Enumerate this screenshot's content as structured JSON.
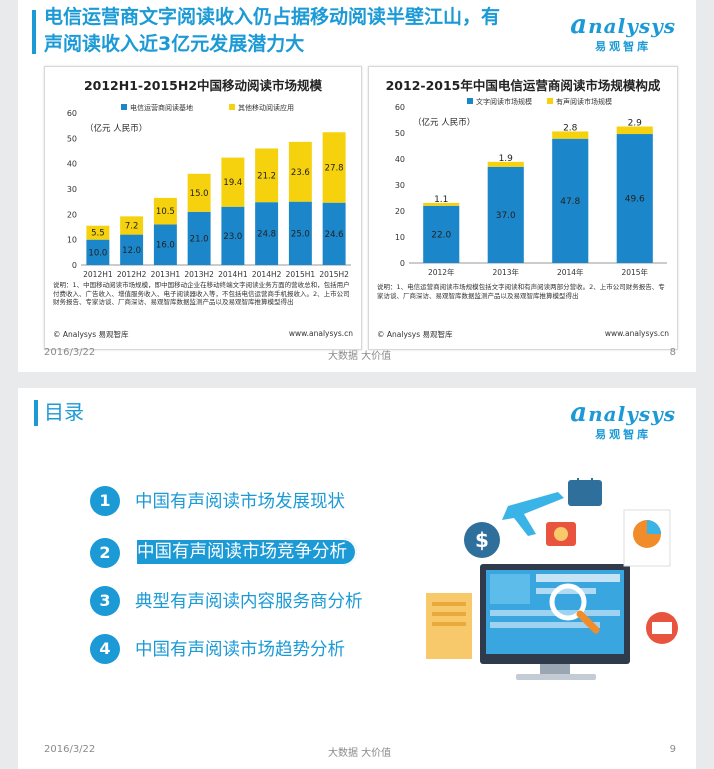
{
  "slide1": {
    "title": "电信运营商文字阅读收入仍占据移动阅读半壁江山，有声阅读收入近3亿元发展潜力大",
    "logo": "nalysys",
    "logo_sub": "易观智库",
    "date": "2016/3/22",
    "tagline": "大数据   大价值",
    "page": "8"
  },
  "slide2": {
    "title": "目录",
    "logo": "nalysys",
    "logo_sub": "易观智库",
    "date": "2016/3/22",
    "tagline": "大数据   大价值",
    "page": "9",
    "items": [
      {
        "num": "1",
        "label": "中国有声阅读市场发展现状"
      },
      {
        "num": "2",
        "label": "中国有声阅读市场竞争分析"
      },
      {
        "num": "3",
        "label": "典型有声阅读内容服务商分析"
      },
      {
        "num": "4",
        "label": "中国有声阅读市场趋势分析"
      }
    ],
    "active_index": 1
  },
  "colors": {
    "accent": "#1b9ad6",
    "yellow": "#f5d10e",
    "blue": "#1b86c9"
  },
  "chart_data": [
    {
      "type": "bar",
      "stacked": true,
      "title": "2012H1-2015H2中国移动阅读市场规模",
      "unit": "（亿元 人民币）",
      "categories": [
        "2012H1",
        "2012H2",
        "2013H1",
        "2013H2",
        "2014H1",
        "2014H2",
        "2015H1",
        "2015H2"
      ],
      "series": [
        {
          "name": "电信运营商阅读基地",
          "values": [
            10.0,
            12.0,
            16.0,
            21.0,
            23.0,
            24.8,
            25.0,
            24.6
          ],
          "labels": [
            "10.0",
            "12.0",
            "16.0",
            "21.0",
            "23.0",
            "24.8",
            "25.0",
            "24.6"
          ],
          "color": "#1b86c9"
        },
        {
          "name": "其他移动阅读应用",
          "values": [
            5.5,
            7.2,
            10.5,
            15.0,
            19.4,
            21.2,
            23.6,
            27.8
          ],
          "labels": [
            "5.5",
            "7.2",
            "10.5",
            "15.0",
            "19.4",
            "21.2",
            "23.6",
            "27.8"
          ],
          "color": "#f5d10e"
        }
      ],
      "ylim": [
        0,
        60
      ],
      "yticks": [
        "0",
        "10",
        "20",
        "30",
        "40",
        "50",
        "60"
      ],
      "legend": "top",
      "note": "说明：1、中国移动阅读市场规模，即中国移动企业在移动终端文字阅读业务方面的营收总和，包括用户付费收入、广告收入、增值服务收入、电子阅读器收入等，不包括电信运营商手机报收入。2、上市公司财务报告、专家访谈、厂商深访、易观智库数据监测产品以及易观智库推算模型得出",
      "source_left": "© Analysys 易观智库",
      "source_right": "www.analysys.cn"
    },
    {
      "type": "bar",
      "stacked": true,
      "title": "2012-2015年中国电信运营商阅读市场规模构成",
      "unit": "（亿元 人民币）",
      "categories": [
        "2012年",
        "2013年",
        "2014年",
        "2015年"
      ],
      "series": [
        {
          "name": "文字阅读市场规模",
          "values": [
            22.0,
            37.0,
            47.8,
            49.6
          ],
          "labels": [
            "22.0",
            "37.0",
            "47.8",
            "49.6"
          ],
          "color": "#1b86c9"
        },
        {
          "name": "有声阅读市场规模",
          "values": [
            1.1,
            1.9,
            2.8,
            2.9
          ],
          "labels": [
            "1.1",
            "1.9",
            "2.8",
            "2.9"
          ],
          "color": "#f5d10e"
        }
      ],
      "ylim": [
        0,
        60
      ],
      "yticks": [
        "0",
        "10",
        "20",
        "30",
        "40",
        "50",
        "60"
      ],
      "legend": "top",
      "note": "说明：1、电信运营商阅读市场规模包括文字阅读和有声阅读两部分营收。2、上市公司财务报告、专家访谈、厂商深访、易观智库数据监测产品以及易观智库推算模型得出",
      "source_left": "© Analysys 易观智库",
      "source_right": "www.analysys.cn"
    }
  ]
}
